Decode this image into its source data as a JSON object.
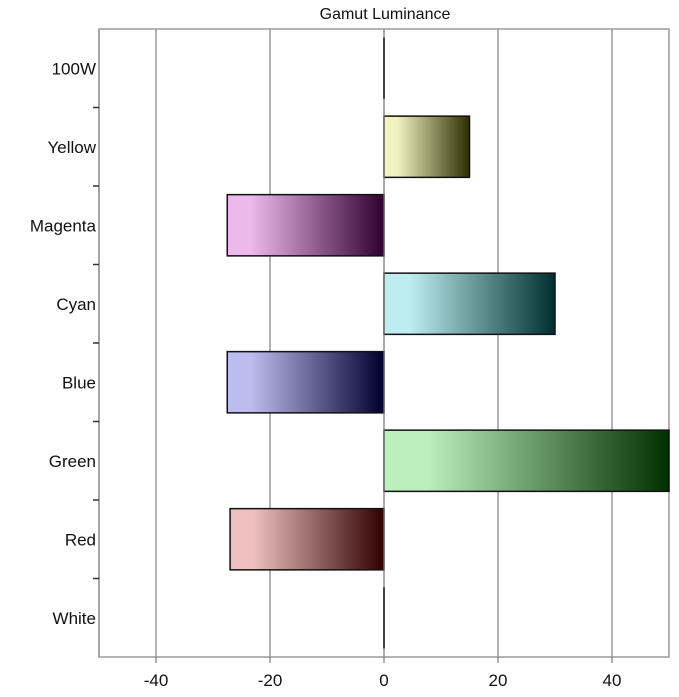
{
  "chart_data": {
    "type": "bar",
    "orientation": "horizontal",
    "title": "Gamut Luminance",
    "xlabel": "",
    "ylabel": "",
    "categories": [
      "100W",
      "Yellow",
      "Magenta",
      "Cyan",
      "Blue",
      "Green",
      "Red",
      "White"
    ],
    "values": [
      0,
      15,
      -27.5,
      30,
      -27.5,
      50,
      -27,
      0
    ],
    "xlim": [
      -50,
      50
    ],
    "xticks": [
      -40,
      -20,
      0,
      20,
      40
    ],
    "xtick_labels": [
      "-40",
      "-20",
      "0",
      "20",
      "40"
    ],
    "grid": "vertical",
    "legend": "none",
    "bar_colors": [
      {
        "light": "#ffffff",
        "dark": "#000000"
      },
      {
        "light": "#f3f3c2",
        "dark": "#2d2d00"
      },
      {
        "light": "#ecb9ec",
        "dark": "#2f002f"
      },
      {
        "light": "#bdedee",
        "dark": "#002f2f"
      },
      {
        "light": "#bcbdee",
        "dark": "#00002f"
      },
      {
        "light": "#bdeebe",
        "dark": "#003000"
      },
      {
        "light": "#eec0c0",
        "dark": "#300000"
      },
      {
        "light": "#ffffff",
        "dark": "#000000"
      }
    ]
  }
}
